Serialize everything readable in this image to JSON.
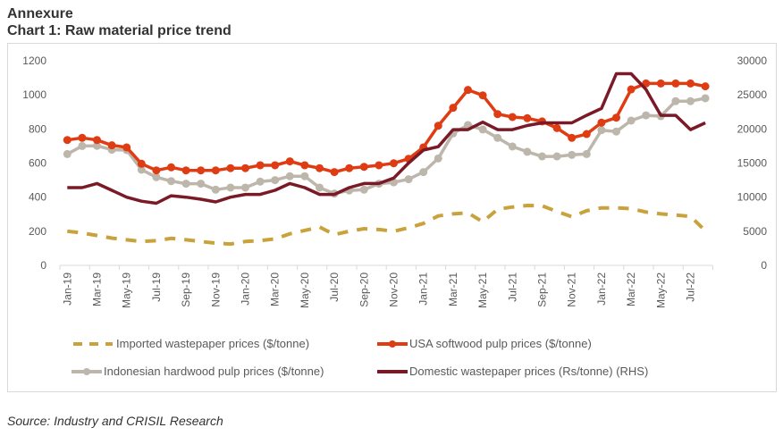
{
  "heading": "Annexure",
  "chart_data": {
    "type": "line",
    "title": "Chart 1: Raw material price trend",
    "categories": [
      "Jan-19",
      "Feb-19",
      "Mar-19",
      "Apr-19",
      "May-19",
      "Jun-19",
      "Jul-19",
      "Aug-19",
      "Sep-19",
      "Oct-19",
      "Nov-19",
      "Dec-19",
      "Jan-20",
      "Feb-20",
      "Mar-20",
      "Apr-20",
      "May-20",
      "Jun-20",
      "Jul-20",
      "Aug-20",
      "Sep-20",
      "Oct-20",
      "Nov-20",
      "Dec-20",
      "Jan-21",
      "Feb-21",
      "Mar-21",
      "Apr-21",
      "May-21",
      "Jun-21",
      "Jul-21",
      "Aug-21",
      "Sep-21",
      "Oct-21",
      "Nov-21",
      "Dec-21",
      "Jan-22",
      "Feb-22",
      "Mar-22",
      "Apr-22",
      "May-22",
      "Jun-22",
      "Jul-22",
      "Aug-22"
    ],
    "x_tick_labels": [
      "Jan-19",
      "Mar-19",
      "May-19",
      "Jul-19",
      "Sep-19",
      "Nov-19",
      "Jan-20",
      "Mar-20",
      "May-20",
      "Jul-20",
      "Sep-20",
      "Nov-20",
      "Jan-21",
      "Mar-21",
      "May-21",
      "Jul-21",
      "Sep-21",
      "Nov-21",
      "Jan-22",
      "Mar-22",
      "May-22",
      "Jul-22"
    ],
    "y_left": {
      "range": [
        0,
        1200
      ],
      "ticks": [
        "0",
        "200",
        "400",
        "600",
        "800",
        "1000",
        "1200"
      ]
    },
    "y_right": {
      "range": [
        0,
        30000
      ],
      "ticks": [
        "0",
        "5000",
        "10000",
        "15000",
        "20000",
        "25000",
        "30000"
      ]
    },
    "grid": false,
    "legend_position": "bottom",
    "series": [
      {
        "name": "Imported wastepaper prices ($/tonne)",
        "axis": "left",
        "style": "dashed",
        "color": "#c9a23c",
        "values": [
          200,
          190,
          175,
          160,
          150,
          140,
          145,
          158,
          150,
          140,
          130,
          125,
          140,
          145,
          155,
          185,
          205,
          225,
          180,
          200,
          215,
          210,
          200,
          220,
          246,
          290,
          302,
          308,
          255,
          329,
          342,
          351,
          349,
          316,
          285,
          320,
          337,
          337,
          333,
          313,
          302,
          295,
          287,
          203
        ]
      },
      {
        "name": "USA softwood pulp prices ($/tonne)",
        "axis": "left",
        "style": "markers",
        "color": "#e03c14",
        "values": [
          735,
          748,
          735,
          704,
          692,
          596,
          557,
          575,
          557,
          557,
          557,
          570,
          570,
          587,
          587,
          610,
          587,
          570,
          547,
          570,
          578,
          587,
          599,
          625,
          692,
          819,
          924,
          1029,
          997,
          887,
          870,
          863,
          844,
          805,
          748,
          770,
          837,
          866,
          1032,
          1067,
          1067,
          1067,
          1067,
          1050
        ]
      },
      {
        "name": "Indonesian hardwood pulp prices ($/tonne)",
        "axis": "left",
        "style": "markers",
        "color": "#bdb6ab",
        "values": [
          653,
          700,
          701,
          678,
          676,
          561,
          517,
          494,
          479,
          479,
          444,
          456,
          456,
          491,
          500,
          523,
          523,
          456,
          421,
          439,
          444,
          479,
          487,
          505,
          547,
          627,
          774,
          823,
          797,
          748,
          697,
          666,
          639,
          639,
          648,
          653,
          793,
          785,
          849,
          880,
          875,
          963,
          963,
          980
        ]
      },
      {
        "name": "Domestic wastepaper prices (Rs/tonne) (RHS)",
        "axis": "right",
        "style": "solid",
        "color": "#7b1a27",
        "values": [
          11400,
          11400,
          12000,
          11000,
          10000,
          9400,
          9100,
          10200,
          10000,
          9700,
          9300,
          10000,
          10400,
          10400,
          11000,
          12000,
          11400,
          10400,
          10400,
          11400,
          12000,
          12000,
          12800,
          15000,
          16900,
          17400,
          19900,
          19900,
          21000,
          19900,
          19900,
          20500,
          20900,
          20900,
          20900,
          22000,
          23000,
          28100,
          28100,
          25800,
          22000,
          22000,
          19900,
          20900
        ]
      }
    ]
  },
  "source": "Source: Industry and CRISIL Research"
}
